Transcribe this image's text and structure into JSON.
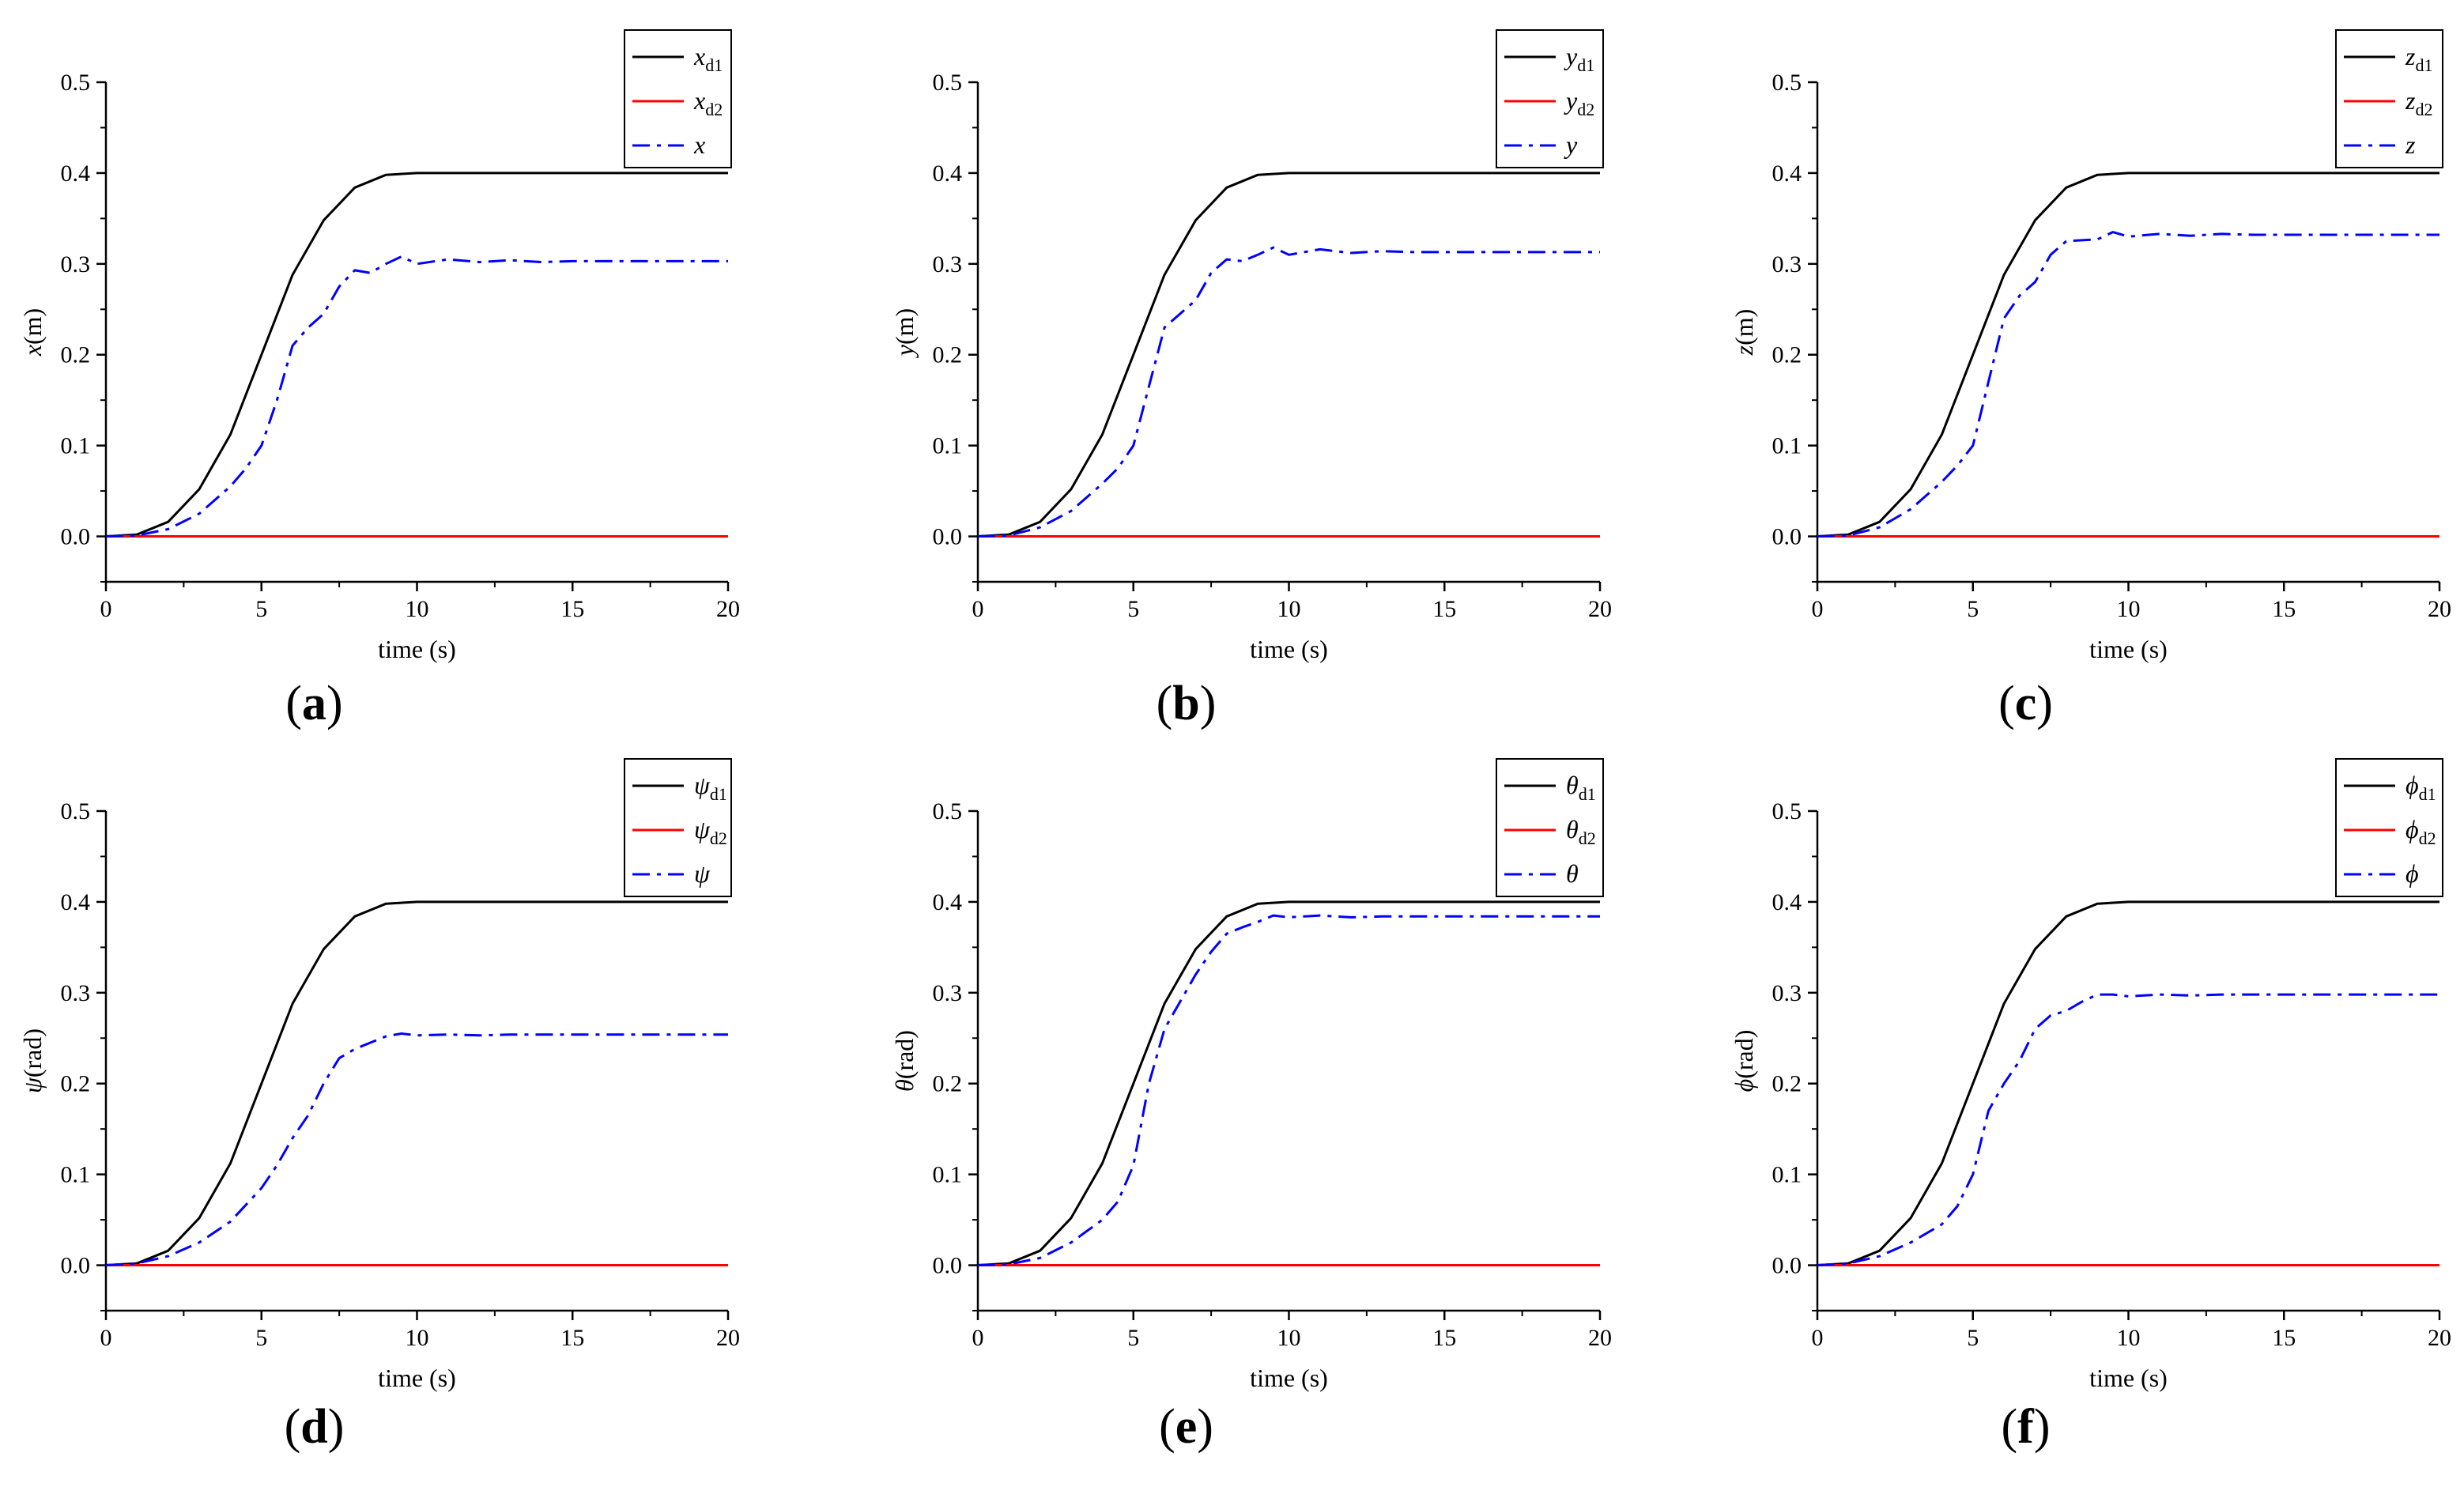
{
  "figure": {
    "panels": [
      "a",
      "b",
      "c",
      "d",
      "e",
      "f"
    ]
  },
  "chart_data": [
    {
      "type": "line",
      "panel_label": "a",
      "xlabel": "time (s)",
      "ylabel_var": "x",
      "ylabel_unit": "(m)",
      "xlim": [
        0,
        20
      ],
      "ylim": [
        -0.05,
        0.5
      ],
      "xticks": [
        "0",
        "5",
        "10",
        "15",
        "20"
      ],
      "yticks": [
        "0.0",
        "0.1",
        "0.2",
        "0.3",
        "0.4",
        "0.5"
      ],
      "legend": [
        {
          "var": "x",
          "sub": "d1",
          "color": "#000000",
          "dash": "solid"
        },
        {
          "var": "x",
          "sub": "d2",
          "color": "#ff0000",
          "dash": "solid"
        },
        {
          "var": "x",
          "sub": "",
          "color": "#0000ff",
          "dash": "dashdot"
        }
      ],
      "series": [
        {
          "name": "x_d1",
          "color": "#000000",
          "dash": "solid",
          "x": [
            0,
            1,
            2,
            3,
            4,
            5,
            6,
            7,
            8,
            9,
            10,
            15,
            20
          ],
          "values": [
            0,
            0.002,
            0.016,
            0.052,
            0.112,
            0.2,
            0.288,
            0.348,
            0.384,
            0.398,
            0.4,
            0.4,
            0.4
          ]
        },
        {
          "name": "x_d2",
          "color": "#ff0000",
          "dash": "solid",
          "x": [
            0,
            20
          ],
          "values": [
            0,
            0
          ]
        },
        {
          "name": "x",
          "color": "#0000ff",
          "dash": "dashdot",
          "x": [
            0,
            1,
            2,
            3,
            4,
            4.5,
            5,
            5.5,
            6,
            6.5,
            7,
            7.5,
            8,
            8.5,
            9,
            9.5,
            10,
            11,
            12,
            13,
            14,
            15,
            17,
            20
          ],
          "values": [
            0,
            0.001,
            0.008,
            0.025,
            0.055,
            0.075,
            0.1,
            0.15,
            0.21,
            0.23,
            0.245,
            0.275,
            0.293,
            0.29,
            0.3,
            0.308,
            0.3,
            0.305,
            0.302,
            0.304,
            0.302,
            0.303,
            0.303,
            0.303
          ]
        }
      ]
    },
    {
      "type": "line",
      "panel_label": "b",
      "xlabel": "time (s)",
      "ylabel_var": "y",
      "ylabel_unit": "(m)",
      "xlim": [
        0,
        20
      ],
      "ylim": [
        -0.05,
        0.5
      ],
      "xticks": [
        "0",
        "5",
        "10",
        "15",
        "20"
      ],
      "yticks": [
        "0.0",
        "0.1",
        "0.2",
        "0.3",
        "0.4",
        "0.5"
      ],
      "legend": [
        {
          "var": "y",
          "sub": "d1",
          "color": "#000000",
          "dash": "solid"
        },
        {
          "var": "y",
          "sub": "d2",
          "color": "#ff0000",
          "dash": "solid"
        },
        {
          "var": "y",
          "sub": "",
          "color": "#0000ff",
          "dash": "dashdot"
        }
      ],
      "series": [
        {
          "name": "y_d1",
          "color": "#000000",
          "dash": "solid",
          "x": [
            0,
            1,
            2,
            3,
            4,
            5,
            6,
            7,
            8,
            9,
            10,
            15,
            20
          ],
          "values": [
            0,
            0.002,
            0.016,
            0.052,
            0.112,
            0.2,
            0.288,
            0.348,
            0.384,
            0.398,
            0.4,
            0.4,
            0.4
          ]
        },
        {
          "name": "y_d2",
          "color": "#ff0000",
          "dash": "solid",
          "x": [
            0,
            20
          ],
          "values": [
            0,
            0
          ]
        },
        {
          "name": "y",
          "color": "#0000ff",
          "dash": "dashdot",
          "x": [
            0,
            1,
            2,
            3,
            4,
            4.5,
            5,
            5.5,
            6,
            6.5,
            7,
            7.5,
            8,
            8.5,
            9,
            9.5,
            10,
            11,
            12,
            13,
            14,
            15,
            17,
            20
          ],
          "values": [
            0,
            0.001,
            0.01,
            0.028,
            0.058,
            0.075,
            0.1,
            0.165,
            0.23,
            0.245,
            0.26,
            0.29,
            0.305,
            0.303,
            0.31,
            0.318,
            0.31,
            0.316,
            0.312,
            0.314,
            0.313,
            0.313,
            0.313,
            0.313
          ]
        }
      ]
    },
    {
      "type": "line",
      "panel_label": "c",
      "xlabel": "time (s)",
      "ylabel_var": "z",
      "ylabel_unit": "(m)",
      "xlim": [
        0,
        20
      ],
      "ylim": [
        -0.05,
        0.5
      ],
      "xticks": [
        "0",
        "5",
        "10",
        "15",
        "20"
      ],
      "yticks": [
        "0.0",
        "0.1",
        "0.2",
        "0.3",
        "0.4",
        "0.5"
      ],
      "legend": [
        {
          "var": "z",
          "sub": "d1",
          "color": "#000000",
          "dash": "solid"
        },
        {
          "var": "z",
          "sub": "d2",
          "color": "#ff0000",
          "dash": "solid"
        },
        {
          "var": "z",
          "sub": "",
          "color": "#0000ff",
          "dash": "dashdot"
        }
      ],
      "series": [
        {
          "name": "z_d1",
          "color": "#000000",
          "dash": "solid",
          "x": [
            0,
            1,
            2,
            3,
            4,
            5,
            6,
            7,
            8,
            9,
            10,
            15,
            20
          ],
          "values": [
            0,
            0.002,
            0.016,
            0.052,
            0.112,
            0.2,
            0.288,
            0.348,
            0.384,
            0.398,
            0.4,
            0.4,
            0.4
          ]
        },
        {
          "name": "z_d2",
          "color": "#ff0000",
          "dash": "solid",
          "x": [
            0,
            20
          ],
          "values": [
            0,
            0
          ]
        },
        {
          "name": "z",
          "color": "#0000ff",
          "dash": "dashdot",
          "x": [
            0,
            1,
            2,
            3,
            4,
            4.5,
            5,
            5.5,
            6,
            6.5,
            7,
            7.5,
            8,
            8.5,
            9,
            9.5,
            10,
            11,
            12,
            13,
            14,
            15,
            17,
            20
          ],
          "values": [
            0,
            0.001,
            0.01,
            0.03,
            0.06,
            0.078,
            0.1,
            0.17,
            0.24,
            0.265,
            0.28,
            0.31,
            0.325,
            0.326,
            0.327,
            0.335,
            0.33,
            0.333,
            0.331,
            0.333,
            0.332,
            0.332,
            0.332,
            0.332
          ]
        }
      ]
    },
    {
      "type": "line",
      "panel_label": "d",
      "xlabel": "time (s)",
      "ylabel_var": "ψ",
      "ylabel_unit": "(rad)",
      "xlim": [
        0,
        20
      ],
      "ylim": [
        -0.05,
        0.5
      ],
      "xticks": [
        "0",
        "5",
        "10",
        "15",
        "20"
      ],
      "yticks": [
        "0.0",
        "0.1",
        "0.2",
        "0.3",
        "0.4",
        "0.5"
      ],
      "legend": [
        {
          "var": "ψ",
          "sub": "d1",
          "color": "#000000",
          "dash": "solid"
        },
        {
          "var": "ψ",
          "sub": "d2",
          "color": "#ff0000",
          "dash": "solid"
        },
        {
          "var": "ψ",
          "sub": "",
          "color": "#0000ff",
          "dash": "dashdot"
        }
      ],
      "series": [
        {
          "name": "ψ_d1",
          "color": "#000000",
          "dash": "solid",
          "x": [
            0,
            1,
            2,
            3,
            4,
            5,
            6,
            7,
            8,
            9,
            10,
            15,
            20
          ],
          "values": [
            0,
            0.002,
            0.016,
            0.052,
            0.112,
            0.2,
            0.288,
            0.348,
            0.384,
            0.398,
            0.4,
            0.4,
            0.4
          ]
        },
        {
          "name": "ψ_d2",
          "color": "#ff0000",
          "dash": "solid",
          "x": [
            0,
            20
          ],
          "values": [
            0,
            0
          ]
        },
        {
          "name": "ψ",
          "color": "#0000ff",
          "dash": "dashdot",
          "x": [
            0,
            1,
            2,
            3,
            4,
            5,
            5.5,
            6,
            6.5,
            7,
            7.5,
            8,
            8.5,
            9,
            9.5,
            10,
            11,
            12,
            13,
            15,
            17,
            20
          ],
          "values": [
            0,
            0.002,
            0.01,
            0.025,
            0.048,
            0.085,
            0.11,
            0.14,
            0.165,
            0.2,
            0.228,
            0.238,
            0.245,
            0.252,
            0.255,
            0.253,
            0.254,
            0.253,
            0.254,
            0.254,
            0.254,
            0.254
          ]
        }
      ]
    },
    {
      "type": "line",
      "panel_label": "e",
      "xlabel": "time (s)",
      "ylabel_var": "θ",
      "ylabel_unit": "(rad)",
      "xlim": [
        0,
        20
      ],
      "ylim": [
        -0.05,
        0.5
      ],
      "xticks": [
        "0",
        "5",
        "10",
        "15",
        "20"
      ],
      "yticks": [
        "0.0",
        "0.1",
        "0.2",
        "0.3",
        "0.4",
        "0.5"
      ],
      "legend": [
        {
          "var": "θ",
          "sub": "d1",
          "color": "#000000",
          "dash": "solid"
        },
        {
          "var": "θ",
          "sub": "d2",
          "color": "#ff0000",
          "dash": "solid"
        },
        {
          "var": "θ",
          "sub": "",
          "color": "#0000ff",
          "dash": "dashdot"
        }
      ],
      "series": [
        {
          "name": "θ_d1",
          "color": "#000000",
          "dash": "solid",
          "x": [
            0,
            1,
            2,
            3,
            4,
            5,
            6,
            7,
            8,
            9,
            10,
            15,
            20
          ],
          "values": [
            0,
            0.002,
            0.016,
            0.052,
            0.112,
            0.2,
            0.288,
            0.348,
            0.384,
            0.398,
            0.4,
            0.4,
            0.4
          ]
        },
        {
          "name": "θ_d2",
          "color": "#ff0000",
          "dash": "solid",
          "x": [
            0,
            20
          ],
          "values": [
            0,
            0
          ]
        },
        {
          "name": "θ",
          "color": "#0000ff",
          "dash": "dashdot",
          "x": [
            0,
            1,
            2,
            3,
            4,
            4.5,
            5,
            5.5,
            6,
            6.5,
            7,
            7.5,
            8,
            8.5,
            9,
            9.5,
            10,
            11,
            12,
            13,
            15,
            17,
            20
          ],
          "values": [
            0,
            0.001,
            0.008,
            0.025,
            0.05,
            0.07,
            0.11,
            0.2,
            0.26,
            0.29,
            0.32,
            0.345,
            0.365,
            0.372,
            0.378,
            0.385,
            0.383,
            0.385,
            0.383,
            0.384,
            0.384,
            0.384,
            0.384
          ]
        }
      ]
    },
    {
      "type": "line",
      "panel_label": "f",
      "xlabel": "time (s)",
      "ylabel_var": "ϕ",
      "ylabel_unit": "(rad)",
      "xlim": [
        0,
        20
      ],
      "ylim": [
        -0.05,
        0.5
      ],
      "xticks": [
        "0",
        "5",
        "10",
        "15",
        "20"
      ],
      "yticks": [
        "0.0",
        "0.1",
        "0.2",
        "0.3",
        "0.4",
        "0.5"
      ],
      "legend": [
        {
          "var": "ϕ",
          "sub": "d1",
          "color": "#000000",
          "dash": "solid"
        },
        {
          "var": "ϕ",
          "sub": "d2",
          "color": "#ff0000",
          "dash": "solid"
        },
        {
          "var": "ϕ",
          "sub": "",
          "color": "#0000ff",
          "dash": "dashdot"
        }
      ],
      "series": [
        {
          "name": "ϕ_d1",
          "color": "#000000",
          "dash": "solid",
          "x": [
            0,
            1,
            2,
            3,
            4,
            5,
            6,
            7,
            8,
            9,
            10,
            15,
            20
          ],
          "values": [
            0,
            0.002,
            0.016,
            0.052,
            0.112,
            0.2,
            0.288,
            0.348,
            0.384,
            0.398,
            0.4,
            0.4,
            0.4
          ]
        },
        {
          "name": "ϕ_d2",
          "color": "#ff0000",
          "dash": "solid",
          "x": [
            0,
            20
          ],
          "values": [
            0,
            0
          ]
        },
        {
          "name": "ϕ",
          "color": "#0000ff",
          "dash": "dashdot",
          "x": [
            0,
            1,
            2,
            3,
            4,
            4.5,
            5,
            5.5,
            6,
            6.5,
            7,
            7.5,
            8,
            8.5,
            9,
            9.5,
            10,
            11,
            12,
            13,
            15,
            17,
            20
          ],
          "values": [
            0,
            0.002,
            0.01,
            0.025,
            0.045,
            0.065,
            0.1,
            0.17,
            0.2,
            0.225,
            0.26,
            0.275,
            0.28,
            0.29,
            0.298,
            0.298,
            0.296,
            0.298,
            0.297,
            0.298,
            0.298,
            0.298,
            0.298
          ]
        }
      ]
    }
  ]
}
